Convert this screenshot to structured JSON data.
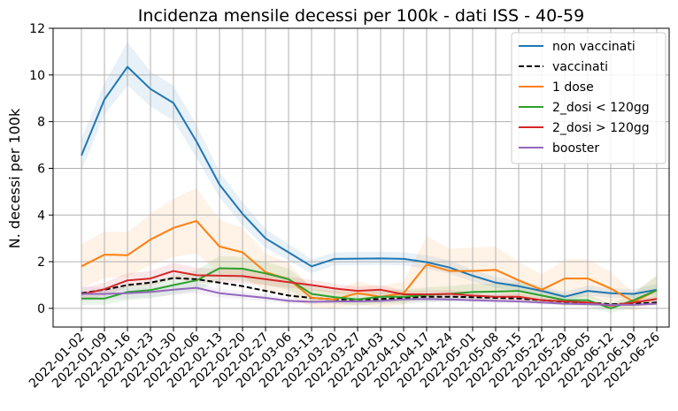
{
  "chart_data": {
    "type": "line",
    "title": "Incidenza mensile decessi per 100k - dati ISS - 40-59",
    "xlabel": "",
    "ylabel": "N. decessi per 100k",
    "ylim": [
      -0.8,
      12
    ],
    "yticks": [
      0,
      2,
      4,
      6,
      8,
      10,
      12
    ],
    "grid": true,
    "legend_position": "top-right",
    "x": [
      "2022-01-02",
      "2022-01-09",
      "2022-01-16",
      "2022-01-23",
      "2022-01-30",
      "2022-02-06",
      "2022-02-13",
      "2022-02-20",
      "2022-02-27",
      "2022-03-06",
      "2022-03-13",
      "2022-03-20",
      "2022-03-27",
      "2022-04-03",
      "2022-04-10",
      "2022-04-17",
      "2022-04-24",
      "2022-05-01",
      "2022-05-08",
      "2022-05-15",
      "2022-05-22",
      "2022-05-29",
      "2022-06-05",
      "2022-06-12",
      "2022-06-19",
      "2022-06-26"
    ],
    "series": [
      {
        "name": "non vaccinati",
        "color": "#1f77b4",
        "style": "solid",
        "values": [
          6.55,
          8.95,
          10.35,
          9.4,
          8.8,
          7.15,
          5.3,
          4.05,
          3.0,
          2.4,
          1.8,
          2.12,
          2.13,
          2.14,
          2.12,
          1.98,
          1.75,
          1.4,
          1.1,
          0.95,
          0.75,
          0.5,
          0.75,
          0.65,
          0.62,
          0.8
        ],
        "lower": [
          5.9,
          8.3,
          9.55,
          8.65,
          8.05,
          6.45,
          4.75,
          3.55,
          2.6,
          2.05,
          1.5,
          1.85,
          1.85,
          1.86,
          1.84,
          1.7,
          1.48,
          1.15,
          0.88,
          0.74,
          0.56,
          0.33,
          0.55,
          0.46,
          0.43,
          0.58
        ],
        "upper": [
          7.25,
          9.65,
          11.4,
          10.15,
          9.55,
          7.85,
          5.85,
          4.55,
          3.4,
          2.75,
          2.1,
          2.4,
          2.42,
          2.43,
          2.4,
          2.28,
          2.05,
          1.65,
          1.35,
          1.18,
          0.96,
          0.7,
          0.97,
          0.86,
          0.83,
          1.04
        ]
      },
      {
        "name": "vaccinati",
        "color": "#000000",
        "style": "dashed",
        "values": [
          0.65,
          0.8,
          1.0,
          1.1,
          1.3,
          1.25,
          1.1,
          0.95,
          0.75,
          0.55,
          0.45,
          0.38,
          0.38,
          0.4,
          0.45,
          0.5,
          0.5,
          0.48,
          0.45,
          0.42,
          0.35,
          0.28,
          0.25,
          0.18,
          0.2,
          0.25
        ]
      },
      {
        "name": "1 dose",
        "color": "#ff7f0e",
        "style": "solid",
        "values": [
          1.8,
          2.3,
          2.28,
          2.95,
          3.45,
          3.75,
          2.65,
          2.4,
          1.55,
          1.25,
          0.45,
          0.38,
          0.65,
          0.5,
          0.65,
          1.88,
          1.6,
          1.6,
          1.65,
          1.2,
          0.8,
          1.28,
          1.28,
          0.85,
          0.28,
          0.78
        ],
        "lower": [
          0.85,
          1.3,
          1.35,
          1.85,
          2.2,
          2.35,
          1.5,
          1.35,
          0.75,
          0.55,
          0.05,
          0.02,
          0.15,
          0.05,
          0.15,
          0.75,
          0.65,
          0.65,
          0.7,
          0.4,
          0.15,
          0.45,
          0.45,
          0.15,
          -0.1,
          0.15
        ],
        "upper": [
          2.75,
          3.3,
          3.25,
          4.05,
          4.7,
          5.15,
          3.8,
          3.45,
          2.35,
          1.95,
          0.85,
          0.75,
          1.15,
          0.95,
          1.15,
          3.1,
          2.55,
          2.6,
          2.65,
          2.0,
          1.45,
          2.1,
          2.1,
          1.55,
          0.66,
          1.4
        ]
      },
      {
        "name": "2_dosi < 120gg",
        "color": "#2ca02c",
        "style": "solid",
        "values": [
          0.42,
          0.42,
          0.7,
          0.78,
          1.0,
          1.2,
          1.72,
          1.7,
          1.5,
          1.25,
          0.62,
          0.48,
          0.38,
          0.5,
          0.5,
          0.58,
          0.62,
          0.7,
          0.72,
          0.75,
          0.55,
          0.35,
          0.35,
          0.0,
          0.35,
          0.78
        ],
        "lower": [
          0.15,
          0.15,
          0.35,
          0.42,
          0.6,
          0.75,
          1.2,
          1.2,
          1.0,
          0.8,
          0.3,
          0.2,
          0.12,
          0.2,
          0.2,
          0.25,
          0.3,
          0.35,
          0.38,
          0.4,
          0.25,
          0.1,
          0.1,
          -0.2,
          0.05,
          0.25
        ],
        "upper": [
          0.7,
          0.7,
          1.05,
          1.15,
          1.4,
          1.65,
          2.25,
          2.2,
          2.0,
          1.7,
          0.95,
          0.76,
          0.65,
          0.8,
          0.8,
          0.9,
          0.95,
          1.05,
          1.06,
          1.1,
          0.86,
          0.6,
          0.6,
          0.2,
          0.65,
          1.4
        ]
      },
      {
        "name": "2_dosi > 120gg",
        "color": "#d62728",
        "style": "solid",
        "values": [
          0.6,
          0.82,
          1.2,
          1.28,
          1.6,
          1.42,
          1.4,
          1.38,
          1.25,
          1.12,
          1.0,
          0.85,
          0.75,
          0.8,
          0.6,
          0.6,
          0.62,
          0.55,
          0.5,
          0.5,
          0.35,
          0.3,
          0.25,
          0.12,
          0.25,
          0.4
        ],
        "lower": [
          0.35,
          0.55,
          0.9,
          0.95,
          1.25,
          1.1,
          1.1,
          1.08,
          0.98,
          0.88,
          0.78,
          0.65,
          0.56,
          0.6,
          0.44,
          0.44,
          0.46,
          0.4,
          0.36,
          0.36,
          0.23,
          0.19,
          0.15,
          0.05,
          0.14,
          0.25
        ],
        "upper": [
          0.85,
          1.1,
          1.5,
          1.6,
          1.95,
          1.75,
          1.7,
          1.68,
          1.52,
          1.36,
          1.22,
          1.05,
          0.94,
          1.0,
          0.76,
          0.76,
          0.78,
          0.7,
          0.64,
          0.64,
          0.47,
          0.41,
          0.35,
          0.2,
          0.36,
          0.55
        ]
      },
      {
        "name": "booster",
        "color": "#9467bd",
        "style": "solid",
        "values": [
          0.62,
          0.62,
          0.65,
          0.7,
          0.8,
          0.88,
          0.65,
          0.55,
          0.45,
          0.32,
          0.28,
          0.3,
          0.3,
          0.32,
          0.38,
          0.4,
          0.38,
          0.35,
          0.32,
          0.3,
          0.25,
          0.2,
          0.18,
          0.15,
          0.15,
          0.2
        ],
        "lower": [
          0.3,
          0.35,
          0.42,
          0.48,
          0.58,
          0.65,
          0.46,
          0.38,
          0.3,
          0.2,
          0.18,
          0.2,
          0.2,
          0.22,
          0.27,
          0.29,
          0.28,
          0.26,
          0.24,
          0.22,
          0.18,
          0.14,
          0.12,
          0.1,
          0.1,
          0.14
        ],
        "upper": [
          0.94,
          0.9,
          0.88,
          0.92,
          1.02,
          1.1,
          0.84,
          0.72,
          0.6,
          0.44,
          0.38,
          0.4,
          0.4,
          0.42,
          0.49,
          0.51,
          0.48,
          0.44,
          0.4,
          0.38,
          0.32,
          0.26,
          0.24,
          0.2,
          0.2,
          0.26
        ]
      }
    ]
  }
}
